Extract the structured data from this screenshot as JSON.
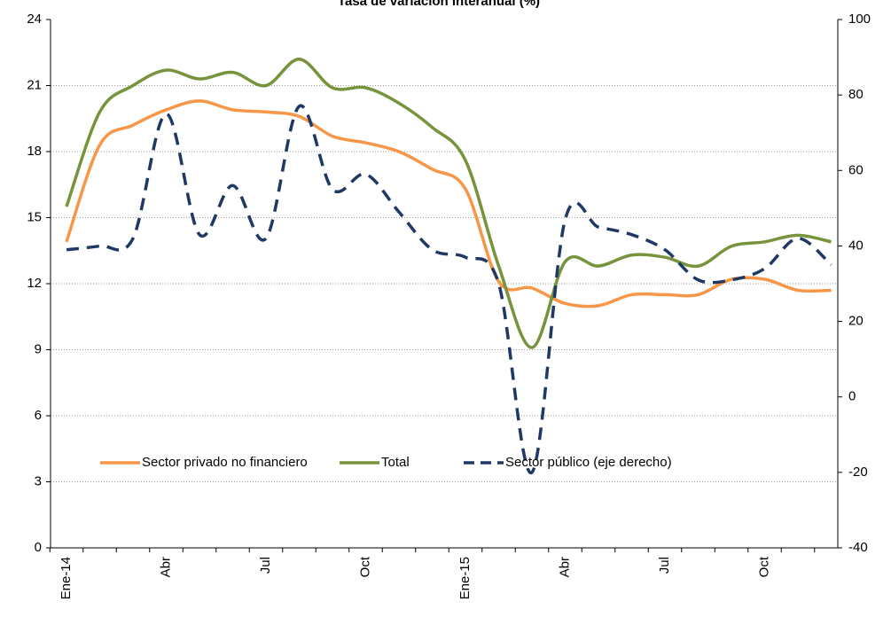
{
  "chart_data": {
    "type": "line",
    "title": "Tasa de variación interanual (%)",
    "categories": [
      "Ene-14",
      null,
      null,
      "Abr",
      null,
      null,
      "Jul",
      null,
      null,
      "Oct",
      null,
      null,
      "Ene-15",
      null,
      null,
      "Abr",
      null,
      null,
      "Jul",
      null,
      null,
      "Oct",
      null,
      null
    ],
    "series": [
      {
        "name": "Sector privado no financiero",
        "color": "#f79646",
        "axis": "y",
        "values": [
          13.9,
          18.3,
          19.2,
          19.9,
          20.3,
          19.9,
          19.8,
          19.6,
          18.7,
          18.4,
          18.0,
          17.2,
          16.3,
          12.1,
          11.8,
          11.1,
          11.0,
          11.5,
          11.5,
          11.5,
          12.2,
          12.2,
          11.7,
          11.7
        ]
      },
      {
        "name": "Total",
        "color": "#77933c",
        "axis": "y",
        "values": [
          15.5,
          19.8,
          21.0,
          21.7,
          21.3,
          21.6,
          21.0,
          22.2,
          20.9,
          20.9,
          20.2,
          19.1,
          17.6,
          12.8,
          9.1,
          13.0,
          12.8,
          13.3,
          13.2,
          12.8,
          13.7,
          13.9,
          14.2,
          13.9
        ]
      },
      {
        "name": "Sector público (eje derecho)",
        "color": "#1f3864",
        "axis": "y2",
        "dashed": true,
        "values": [
          39,
          40,
          42,
          75,
          43,
          56,
          42,
          77,
          55,
          59,
          49,
          39,
          37,
          30,
          -20,
          47,
          45,
          43,
          39,
          31,
          31,
          34,
          42,
          35
        ]
      }
    ],
    "ylim": [
      0,
      24
    ],
    "yticks": [
      0,
      3,
      6,
      9,
      12,
      15,
      18,
      21,
      24
    ],
    "y2lim": [
      -40,
      100
    ],
    "y2ticks": [
      -40,
      -20,
      0,
      20,
      40,
      60,
      80,
      100
    ],
    "grid": true,
    "legend": "bottom"
  }
}
